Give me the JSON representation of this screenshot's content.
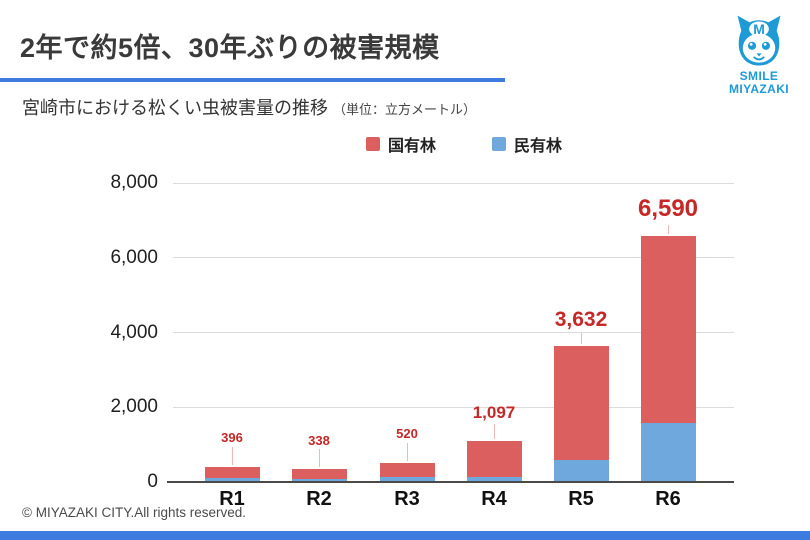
{
  "header": {
    "title": "2年で約5倍、30年ぶりの被害規模"
  },
  "logo": {
    "line1": "SMILE",
    "line2": "MIYAZAKI",
    "color": "#1e9ad6",
    "mascot_icon": "smile-miyazaki-mascot"
  },
  "subtitle": {
    "main": "宮崎市における松くい虫被害量の推移",
    "unit": "（単位：立方メートル）"
  },
  "legend": [
    {
      "label": "国有林",
      "color": "#dc5f5f"
    },
    {
      "label": "民有林",
      "color": "#6fa8dc"
    }
  ],
  "chart_data": {
    "type": "bar",
    "stacked": true,
    "title": "宮崎市における松くい虫被害量の推移",
    "unit": "立方メートル",
    "categories": [
      "R1",
      "R2",
      "R3",
      "R4",
      "R5",
      "R6"
    ],
    "totals": [
      396,
      338,
      520,
      1097,
      3632,
      6590
    ],
    "total_labels": [
      "396",
      "338",
      "520",
      "1,097",
      "3,632",
      "6,590"
    ],
    "series": [
      {
        "name": "国有林",
        "color": "#dc5f5f",
        "position": "top",
        "values": [
          296,
          258,
          390,
          967,
          3032,
          5000
        ]
      },
      {
        "name": "民有林",
        "color": "#6fa8dc",
        "position": "bottom",
        "values": [
          100,
          80,
          130,
          130,
          600,
          1590
        ]
      }
    ],
    "ylim": [
      0,
      8000
    ],
    "yticks": [
      0,
      2000,
      4000,
      6000,
      8000
    ],
    "ytick_labels": [
      "0",
      "2,000",
      "4,000",
      "6,000",
      "8,000"
    ],
    "grid": true,
    "legend_position": "top",
    "value_label_color": "#c62828",
    "value_label_sizes": [
      13,
      13,
      13,
      17,
      21,
      24
    ]
  },
  "footer": {
    "copyright": "© MIYAZAKI CITY.All rights reserved."
  },
  "colors": {
    "accent_blue": "#3d7cde",
    "bar_red": "#dc5f5f",
    "bar_blue": "#6fa8dc",
    "label_red": "#c62828",
    "logo_blue": "#1e9ad6",
    "grid": "#dcdcdc",
    "axis": "#4a4a4a"
  }
}
